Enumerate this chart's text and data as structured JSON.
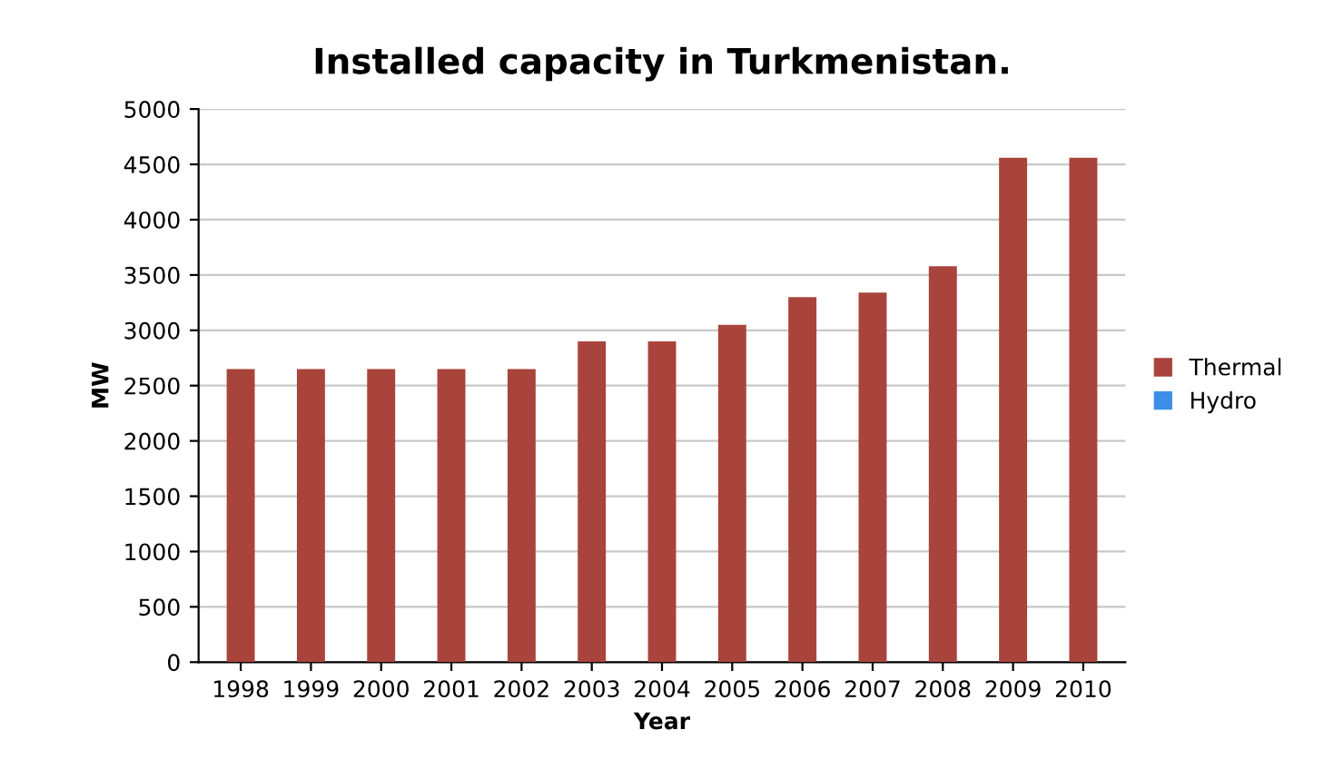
{
  "chart_data": {
    "type": "bar",
    "title": "Installed capacity in Turkmenistan.",
    "xlabel": "Year",
    "ylabel": "MW",
    "categories": [
      "1998",
      "1999",
      "2000",
      "2001",
      "2002",
      "2003",
      "2004",
      "2005",
      "2006",
      "2007",
      "2008",
      "2009",
      "2010"
    ],
    "series": [
      {
        "name": "Thermal",
        "color": "#a9443c",
        "values": [
          2650,
          2650,
          2650,
          2650,
          2650,
          2900,
          2900,
          3050,
          3300,
          3340,
          3580,
          4560,
          4560
        ]
      },
      {
        "name": "Hydro",
        "color": "#3d8ee8",
        "values": [
          null,
          null,
          null,
          null,
          null,
          null,
          null,
          null,
          null,
          null,
          null,
          null,
          null
        ]
      }
    ],
    "ylim": [
      0,
      5000
    ],
    "yticks": [
      0,
      500,
      1000,
      1500,
      2000,
      2500,
      3000,
      3500,
      4000,
      4500,
      5000
    ],
    "grid": "y",
    "legend": "right"
  }
}
